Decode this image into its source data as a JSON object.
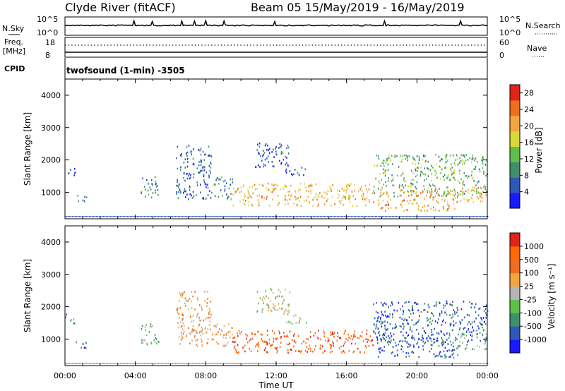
{
  "header": {
    "station": "Clyde River (fitACF)",
    "beam_dates": "Beam 05  15/May/2019 - 16/May/2019"
  },
  "status_panels": {
    "nsky_label": "N.Sky",
    "nsky_ticks": [
      "10^5",
      "10^0"
    ],
    "nsearch_label": "N.Search",
    "nsearch_ticks": [
      "10^5",
      "10^0"
    ],
    "freq_label_1": "Freq.",
    "freq_label_2": "[MHz]",
    "freq_ticks": [
      "18",
      "8"
    ],
    "nave_label": "Nave",
    "nave_ticks": [
      "60",
      "0"
    ],
    "cpid_label": "CPID",
    "cpid_text": "twofsound (1-min) -3505"
  },
  "x_axis": {
    "label": "Time UT",
    "ticks": [
      "00:00",
      "04:00",
      "08:00",
      "12:00",
      "16:00",
      "20:00",
      "00:00"
    ]
  },
  "chart_data": [
    {
      "type": "heatmap",
      "panel": "power",
      "ylabel": "Slant Range [km]",
      "yticks": [
        "1000",
        "2000",
        "3000",
        "4000"
      ],
      "ylim": [
        180,
        4500
      ],
      "xlim": [
        0,
        24
      ],
      "colorbar": {
        "label": "Power [dB]",
        "ticks": [
          "4",
          "8",
          "12",
          "16",
          "20",
          "24",
          "28"
        ],
        "range": [
          0,
          30
        ],
        "colors": [
          "#1a1aff",
          "#2e57b8",
          "#3f8f6a",
          "#5fbf4a",
          "#d8d83a",
          "#f3a640",
          "#ef6d1e",
          "#e02419"
        ]
      },
      "regions": [
        {
          "t": [
            0.6,
            1.2
          ],
          "range": [
            700,
            950
          ],
          "level": 6
        },
        {
          "t": [
            0.0,
            0.6
          ],
          "range": [
            1500,
            1800
          ],
          "level": 7
        },
        {
          "t": [
            4.3,
            5.3
          ],
          "range": [
            800,
            1500
          ],
          "level": 9
        },
        {
          "t": [
            6.3,
            8.3
          ],
          "range": [
            800,
            2500
          ],
          "level": 6
        },
        {
          "t": [
            8.3,
            9.5
          ],
          "range": [
            800,
            1500
          ],
          "level": 8
        },
        {
          "t": [
            10.8,
            12.8
          ],
          "range": [
            1800,
            2600
          ],
          "level": 5
        },
        {
          "t": [
            12.5,
            13.7
          ],
          "range": [
            1500,
            1800
          ],
          "level": 4
        },
        {
          "t": [
            9.5,
            17.5
          ],
          "range": [
            600,
            1300
          ],
          "level": 20
        },
        {
          "t": [
            17.7,
            22.3
          ],
          "range": [
            450,
            1100
          ],
          "level": 22
        },
        {
          "t": [
            17.5,
            24.0
          ],
          "range": [
            900,
            2200
          ],
          "level": 12
        },
        {
          "t": [
            22.3,
            24.0
          ],
          "range": [
            700,
            1200
          ],
          "level": 20
        }
      ]
    },
    {
      "type": "heatmap",
      "panel": "velocity",
      "ylabel": "Slant Range [km]",
      "yticks": [
        "1000",
        "2000",
        "3000",
        "4000"
      ],
      "ylim": [
        180,
        4500
      ],
      "xlim": [
        0,
        24
      ],
      "colorbar": {
        "label": "Velocity [m s⁻¹]",
        "ticks": [
          "1000",
          "500",
          "100",
          "25",
          "-25",
          "-100",
          "-500",
          "-1000"
        ],
        "colors": [
          "#1a1aff",
          "#2e57b8",
          "#3f8f6a",
          "#5fbf4a",
          "#b5b5b5",
          "#f3a640",
          "#ef6d1e",
          "#ff6a00",
          "#e02419"
        ]
      },
      "regions": [
        {
          "t": [
            0.6,
            1.2
          ],
          "range": [
            700,
            950
          ],
          "level": 1
        },
        {
          "t": [
            0.0,
            0.6
          ],
          "range": [
            1500,
            1800
          ],
          "level": 2
        },
        {
          "t": [
            4.3,
            5.3
          ],
          "range": [
            800,
            1500
          ],
          "level": 3
        },
        {
          "t": [
            6.3,
            8.3
          ],
          "range": [
            800,
            2500
          ],
          "level": 5
        },
        {
          "t": [
            8.3,
            9.5
          ],
          "range": [
            800,
            1500
          ],
          "level": 5
        },
        {
          "t": [
            10.8,
            12.8
          ],
          "range": [
            1800,
            2600
          ],
          "level": 4
        },
        {
          "t": [
            12.5,
            13.7
          ],
          "range": [
            1500,
            1800
          ],
          "level": 4
        },
        {
          "t": [
            9.5,
            17.5
          ],
          "range": [
            600,
            1300
          ],
          "level": 7
        },
        {
          "t": [
            17.7,
            22.3
          ],
          "range": [
            450,
            1100
          ],
          "level": 1
        },
        {
          "t": [
            17.5,
            24.0
          ],
          "range": [
            900,
            2200
          ],
          "level": 1
        },
        {
          "t": [
            22.3,
            24.0
          ],
          "range": [
            700,
            1200
          ],
          "level": 3
        }
      ]
    }
  ]
}
